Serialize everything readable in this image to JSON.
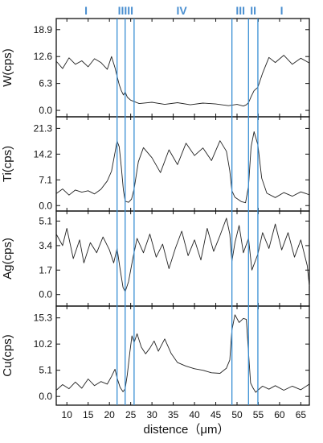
{
  "chart_data": {
    "type": "line",
    "xlabel": "distence（μm）",
    "xlim": [
      7.5,
      67
    ],
    "xticks": [
      10,
      15,
      20,
      25,
      30,
      35,
      40,
      45,
      50,
      55,
      60,
      65
    ],
    "colors": {
      "boundary": "#3a8fd4",
      "region_label": "#4a8fd0",
      "line": "#222222"
    },
    "boundaries": [
      21.8,
      23.7,
      25.8,
      48.8,
      52.7,
      54.9
    ],
    "region_labels": [
      {
        "text": "I",
        "x": 14.5
      },
      {
        "text": "IIIII",
        "x": 23.8
      },
      {
        "text": "IV",
        "x": 37.0
      },
      {
        "text": "III",
        "x": 50.8
      },
      {
        "text": "II",
        "x": 53.8
      },
      {
        "text": "I",
        "x": 60.5
      }
    ],
    "panels": [
      {
        "ylabel": "W(cps)",
        "ylim": [
          -1.5,
          21.5
        ],
        "yticks": [
          0.0,
          6.3,
          12.6,
          18.9
        ],
        "ytick_labels": [
          "0.0",
          "6.3",
          "12.6",
          "18.9"
        ],
        "x": [
          7.5,
          9,
          10.5,
          12,
          13.5,
          15,
          16.5,
          18,
          19.5,
          20.5,
          21.3,
          21.8,
          22.3,
          22.8,
          23.3,
          23.7,
          24.2,
          25,
          27,
          30,
          33,
          36,
          39,
          42,
          45,
          48,
          50,
          51.5,
          52.2,
          52.7,
          53.3,
          54,
          54.9,
          56,
          57.5,
          59,
          61,
          63,
          65,
          67
        ],
        "values": [
          11.5,
          9.8,
          12.3,
          10.8,
          11.6,
          10.2,
          12.1,
          11.2,
          9.6,
          12.6,
          10.0,
          8.0,
          6.0,
          4.6,
          3.6,
          4.3,
          3.1,
          2.4,
          1.6,
          1.9,
          1.4,
          1.8,
          1.3,
          1.7,
          1.5,
          1.1,
          1.4,
          1.0,
          1.3,
          1.8,
          3.2,
          4.6,
          5.4,
          8.7,
          12.4,
          11.2,
          12.9,
          10.8,
          12.2,
          11.1
        ]
      },
      {
        "ylabel": "Ti(cps)",
        "ylim": [
          -1.5,
          24.5
        ],
        "yticks": [
          0.0,
          7.1,
          14.2,
          21.3
        ],
        "ytick_labels": [
          "0.0",
          "7.1",
          "14.2",
          "21.3"
        ],
        "x": [
          7.5,
          9,
          10.5,
          12,
          13.5,
          15,
          16.5,
          18,
          19.5,
          20.5,
          21.3,
          21.8,
          22.3,
          22.8,
          23.3,
          23.7,
          24.5,
          25.2,
          25.8,
          26.8,
          28,
          30,
          32,
          34,
          36,
          38,
          40,
          42,
          44,
          46,
          47.5,
          48.3,
          48.8,
          49.5,
          51,
          52,
          52.7,
          53.3,
          54,
          54.9,
          55.8,
          57,
          59,
          61,
          63,
          65,
          67
        ],
        "values": [
          3.3,
          4.6,
          2.9,
          4.3,
          3.7,
          4.1,
          3.2,
          4.5,
          6.8,
          9.5,
          14.6,
          17.8,
          16.2,
          10.6,
          4.2,
          1.2,
          0.9,
          1.8,
          4.6,
          12.1,
          16.0,
          13.2,
          9.1,
          15.4,
          11.3,
          17.2,
          13.8,
          15.9,
          12.4,
          17.9,
          15.0,
          9.6,
          4.1,
          2.3,
          1.1,
          0.8,
          5.4,
          16.2,
          20.4,
          16.8,
          7.6,
          3.4,
          2.2,
          3.6,
          2.6,
          3.8,
          3.0
        ]
      },
      {
        "ylabel": "Ag(cps)",
        "ylim": [
          -0.8,
          5.8
        ],
        "yticks": [
          0.0,
          1.7,
          3.4,
          5.1
        ],
        "ytick_labels": [
          "0.0",
          "1.7",
          "3.4",
          "5.1"
        ],
        "x": [
          7.5,
          9,
          10,
          11.5,
          13,
          14,
          15.5,
          17,
          18.5,
          20,
          21,
          21.8,
          22.5,
          23.2,
          23.7,
          24.5,
          25.5,
          26.5,
          28,
          29.5,
          31,
          32.5,
          34,
          35.5,
          37,
          38.5,
          40,
          41.5,
          43,
          44.5,
          46,
          47.5,
          48.3,
          48.8,
          49.5,
          50.5,
          51.5,
          52.7,
          53.5,
          54.9,
          56,
          57.5,
          59,
          60.5,
          62,
          63.5,
          65,
          66.5,
          67
        ],
        "values": [
          4.2,
          3.4,
          4.6,
          2.5,
          3.8,
          2.2,
          3.6,
          2.9,
          4.0,
          3.1,
          2.2,
          3.2,
          1.8,
          0.5,
          0.2,
          0.9,
          2.5,
          3.9,
          2.9,
          4.2,
          2.6,
          3.5,
          1.8,
          3.2,
          4.4,
          2.7,
          3.8,
          2.4,
          4.6,
          3.0,
          4.1,
          5.3,
          4.2,
          2.3,
          3.6,
          4.8,
          2.9,
          3.9,
          1.7,
          2.8,
          4.3,
          3.2,
          4.9,
          3.1,
          4.3,
          2.6,
          3.8,
          2.0,
          0.6
        ]
      },
      {
        "ylabel": "Cu(cps)",
        "ylim": [
          -1.7,
          17.6
        ],
        "yticks": [
          0.0,
          5.1,
          10.2,
          15.3
        ],
        "ytick_labels": [
          "0.0",
          "5.1",
          "10.2",
          "15.3"
        ],
        "x": [
          7.5,
          9,
          10.5,
          12,
          13.5,
          15,
          16.5,
          18,
          19.5,
          20.5,
          21.3,
          21.8,
          22.5,
          23.2,
          23.7,
          24.2,
          24.8,
          25.3,
          25.8,
          26.5,
          27.5,
          28.5,
          29.5,
          30.5,
          31.5,
          33,
          34.5,
          36,
          38,
          40,
          42,
          44,
          46,
          47.5,
          48.3,
          48.8,
          49.5,
          50.5,
          51.5,
          52.2,
          52.7,
          53.2,
          53.8,
          54.4,
          54.9,
          56,
          57.5,
          59,
          61,
          63,
          65,
          67
        ],
        "values": [
          1.2,
          2.3,
          1.5,
          2.8,
          1.6,
          3.4,
          2.1,
          2.9,
          2.4,
          3.9,
          5.3,
          3.6,
          1.8,
          0.9,
          1.5,
          4.2,
          8.6,
          11.8,
          10.5,
          12.2,
          9.6,
          8.3,
          9.4,
          10.8,
          8.8,
          11.2,
          8.4,
          6.6,
          5.9,
          5.4,
          5.1,
          4.6,
          4.5,
          5.5,
          7.1,
          12.9,
          15.9,
          14.4,
          15.2,
          15.0,
          8.5,
          2.6,
          1.6,
          0.8,
          1.2,
          2.0,
          1.4,
          2.1,
          1.2,
          2.0,
          1.3,
          2.4
        ]
      }
    ]
  }
}
